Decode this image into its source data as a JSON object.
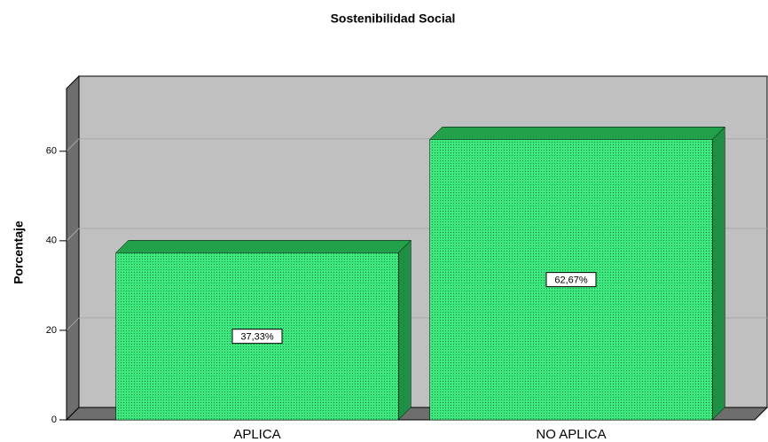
{
  "chart_data": {
    "type": "bar",
    "title": "Sostenibilidad Social",
    "y_label": "Porcentaje",
    "categories": [
      "APLICA",
      "NO APLICA"
    ],
    "values": [
      37.33,
      62.67
    ],
    "value_labels": [
      "37,33%",
      "62,67%"
    ],
    "color": "#3de87f",
    "ylim": [
      0,
      74
    ],
    "yticks": [
      0,
      20,
      40,
      60
    ],
    "grid": true
  }
}
